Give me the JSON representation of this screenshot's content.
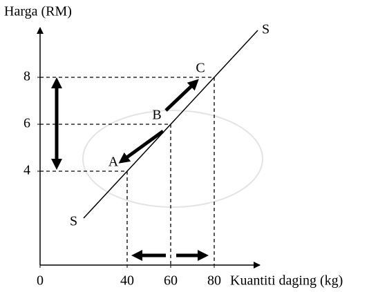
{
  "chart_data": {
    "type": "line",
    "title": "Harga (RM)",
    "x_label": "Kuantiti daging (kg)",
    "xlim": [
      0,
      100
    ],
    "ylim": [
      0,
      10
    ],
    "xticks": [
      0,
      40,
      60,
      80
    ],
    "yticks": [
      4,
      6,
      8
    ],
    "series": [
      {
        "name": "S",
        "color": "#000000",
        "x": [
          20,
          100
        ],
        "values": [
          2,
          10
        ]
      }
    ],
    "points": [
      {
        "label": "A",
        "x": 40,
        "y": 4
      },
      {
        "label": "B",
        "x": 60,
        "y": 6
      },
      {
        "label": "C",
        "x": 80,
        "y": 8
      }
    ]
  }
}
